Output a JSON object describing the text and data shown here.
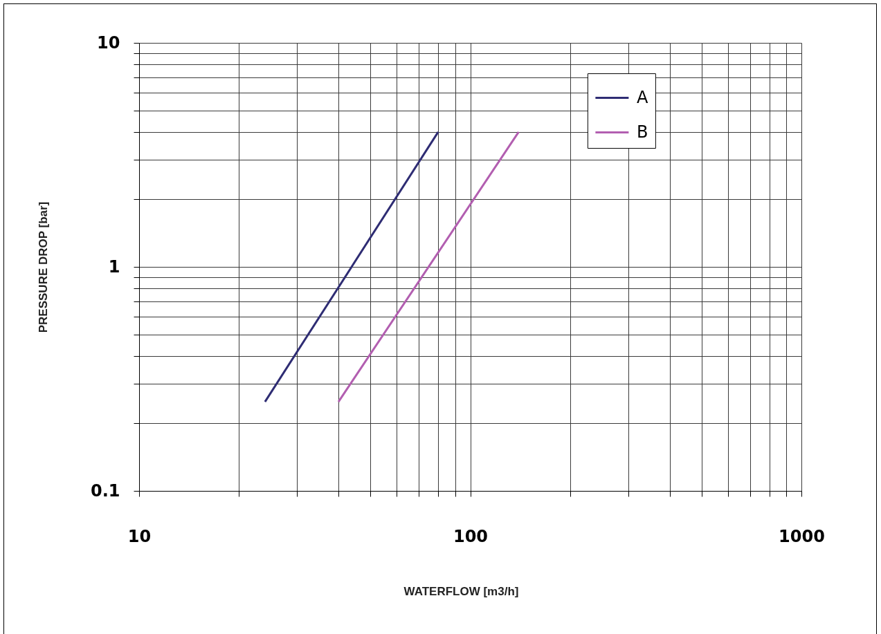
{
  "chart_data": {
    "type": "line",
    "xlabel": "WATERFLOW [m3/h]",
    "ylabel": "PRESSURE DROP [bar]",
    "series": [
      {
        "name": "A",
        "color": "#2e2c73",
        "x": [
          24,
          80
        ],
        "values": [
          0.25,
          4
        ]
      },
      {
        "name": "B",
        "color": "#b25eb0",
        "x": [
          40,
          140
        ],
        "values": [
          0.25,
          4
        ]
      }
    ],
    "xlim": [
      10,
      1000
    ],
    "ylim": [
      0.1,
      10
    ],
    "xticks": [
      10,
      {
        "value": 20,
        "label": null
      },
      {
        "value": 30,
        "label": null
      },
      {
        "value": 40,
        "label": null
      },
      {
        "value": 50,
        "label": null
      },
      {
        "value": 60,
        "label": null
      },
      {
        "value": 70,
        "label": null
      },
      {
        "value": 80,
        "label": null
      },
      {
        "value": 90,
        "label": null
      },
      100,
      {
        "value": 200,
        "label": null
      },
      {
        "value": 300,
        "label": null
      },
      {
        "value": 400,
        "label": null
      },
      {
        "value": 500,
        "label": null
      },
      {
        "value": 600,
        "label": null
      },
      {
        "value": 700,
        "label": null
      },
      {
        "value": 800,
        "label": null
      },
      {
        "value": 900,
        "label": null
      },
      1000
    ],
    "yticks": [
      0.1,
      {
        "value": 0.2,
        "label": null
      },
      {
        "value": 0.3,
        "label": null
      },
      {
        "value": 0.4,
        "label": null
      },
      {
        "value": 0.5,
        "label": null
      },
      {
        "value": 0.6,
        "label": null
      },
      {
        "value": 0.7,
        "label": null
      },
      {
        "value": 0.8,
        "label": null
      },
      {
        "value": 0.9,
        "label": null
      },
      1,
      {
        "value": 2,
        "label": null
      },
      {
        "value": 3,
        "label": null
      },
      {
        "value": 4,
        "label": null
      },
      {
        "value": 5,
        "label": null
      },
      {
        "value": 6,
        "label": null
      },
      {
        "value": 7,
        "label": null
      },
      {
        "value": 8,
        "label": null
      },
      {
        "value": 9,
        "label": null
      },
      10
    ],
    "log": "xy",
    "grid": true,
    "legend": "top right"
  }
}
